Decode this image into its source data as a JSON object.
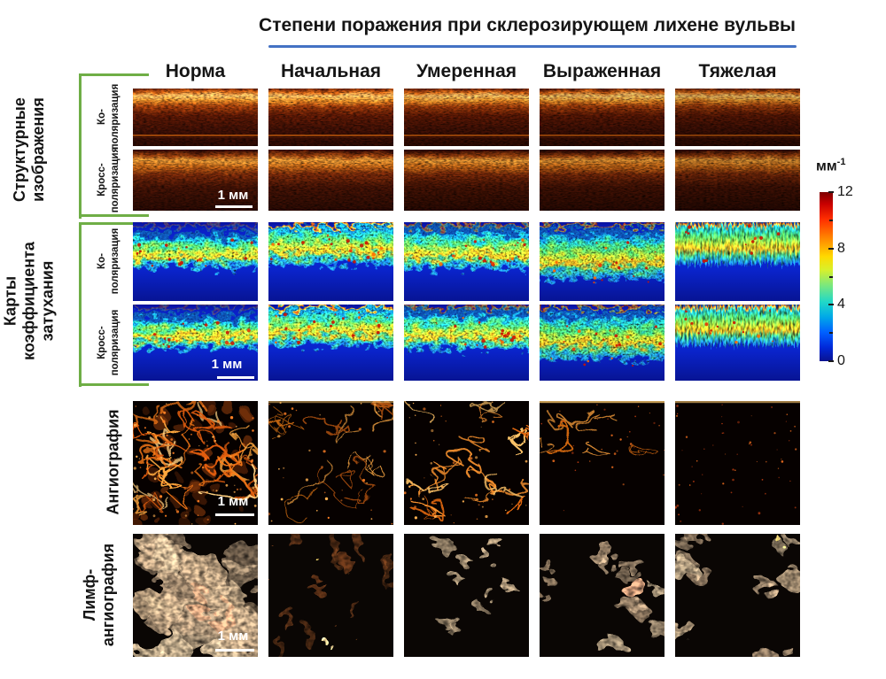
{
  "title": {
    "text": "Степени поражения при склерозирующем лихене вульвы"
  },
  "columns": [
    {
      "key": "norma",
      "label": "Норма"
    },
    {
      "key": "nachalnaya",
      "label": "Начальная"
    },
    {
      "key": "umerennaya",
      "label": "Умеренная"
    },
    {
      "key": "vyrazhennaya",
      "label": "Выраженная"
    },
    {
      "key": "tyazhelaya",
      "label": "Тяжелая"
    }
  ],
  "row_groups": [
    {
      "id": "structural",
      "label_lines": [
        "Структурные",
        "изображения"
      ]
    },
    {
      "id": "attenuation",
      "label_lines": [
        "Карты",
        "коэффициента",
        "затухания"
      ]
    },
    {
      "id": "angio",
      "label_lines": [
        "Ангиография"
      ]
    },
    {
      "id": "lymph",
      "label_lines": [
        "Лимф-",
        "ангиография"
      ]
    }
  ],
  "rows": [
    {
      "group": "structural",
      "type": "struct-ko",
      "sublabel_lines": [
        "Ко-",
        "поляризация"
      ],
      "scalebar": false
    },
    {
      "group": "structural",
      "type": "struct-cross",
      "sublabel_lines": [
        "Кросс-",
        "поляризация"
      ],
      "scalebar": true
    },
    {
      "group": "attenuation",
      "type": "atten-ko",
      "sublabel_lines": [
        "Ко-",
        "поляризация"
      ],
      "scalebar": true
    },
    {
      "group": "attenuation",
      "type": "atten-cross",
      "sublabel_lines": [
        "Кросс-",
        "поляризация"
      ],
      "scalebar": true
    },
    {
      "group": "angio",
      "type": "angio",
      "sublabel_lines": [],
      "scalebar": true
    },
    {
      "group": "lymph",
      "type": "lymph",
      "sublabel_lines": [],
      "scalebar": true
    }
  ],
  "scalebar_label": "1 мм",
  "colorbar": {
    "unit_base": "мм",
    "unit_exp": "-1",
    "tick_labels": [
      "12",
      "8",
      "4",
      "0"
    ],
    "colormap": "jet"
  },
  "colors": {
    "title_underline": "#4472c4",
    "bracket_green": "#6fae46",
    "scalebar_white": "#ffffff"
  }
}
